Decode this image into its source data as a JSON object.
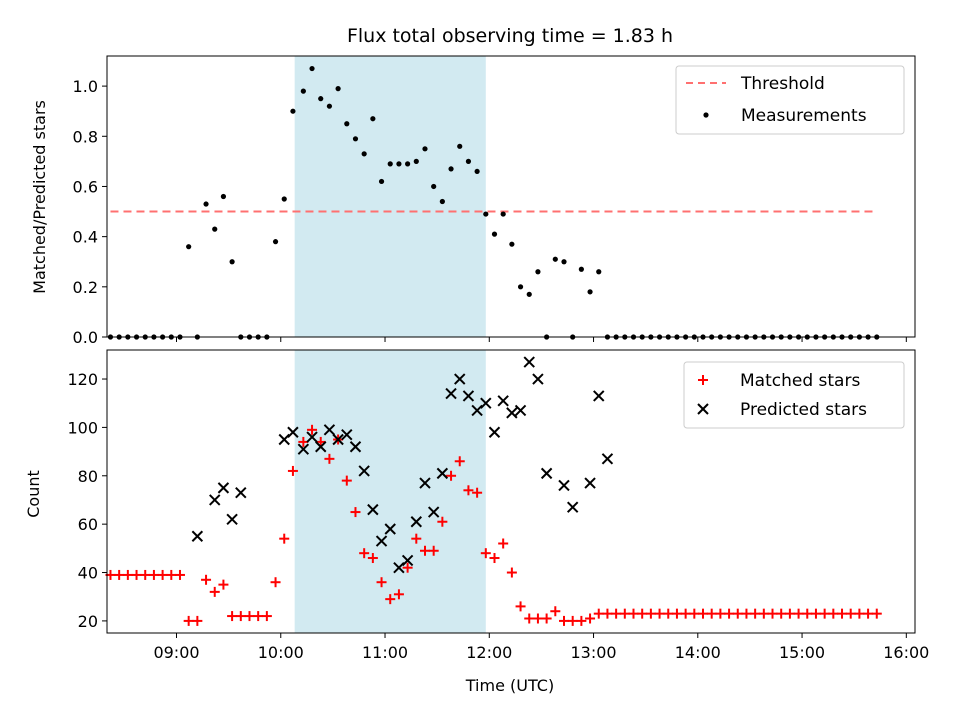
{
  "chart_data": [
    {
      "type": "scatter",
      "title": "Flux total observing time = 1.83 h",
      "xlabel": "",
      "ylabel": "Matched/Predicted stars",
      "xlim": [
        "08:20",
        "16:05"
      ],
      "ylim": [
        0,
        1.12
      ],
      "yticks": [
        0.0,
        0.2,
        0.4,
        0.6,
        0.8,
        1.0
      ],
      "ytick_labels": [
        "0.0",
        "0.2",
        "0.4",
        "0.6",
        "0.8",
        "1.0"
      ],
      "highlight_span": {
        "x": [
          "10:08",
          "11:58"
        ],
        "color": "#add8e6"
      },
      "grid": false,
      "legend": "top-right",
      "series": [
        {
          "name": "Threshold",
          "kind": "line",
          "style": "dashed",
          "color": "#ff7070",
          "x": [
            "08:22",
            "15:43"
          ],
          "y": [
            0.5,
            0.5
          ]
        },
        {
          "name": "Measurements",
          "kind": "scatter",
          "color": "#000000",
          "x": [
            "08:22",
            "08:27",
            "08:32",
            "08:37",
            "08:42",
            "08:47",
            "08:52",
            "08:57",
            "09:02",
            "09:07",
            "09:12",
            "09:17",
            "09:22",
            "09:27",
            "09:32",
            "09:37",
            "09:42",
            "09:47",
            "09:52",
            "09:57",
            "10:02",
            "10:07",
            "10:13",
            "10:18",
            "10:23",
            "10:28",
            "10:33",
            "10:38",
            "10:43",
            "10:48",
            "10:53",
            "10:58",
            "11:03",
            "11:08",
            "11:13",
            "11:18",
            "11:23",
            "11:28",
            "11:33",
            "11:38",
            "11:43",
            "11:48",
            "11:53",
            "11:58",
            "12:03",
            "12:08",
            "12:13",
            "12:18",
            "12:23",
            "12:28",
            "12:33",
            "12:38",
            "12:43",
            "12:48",
            "12:53",
            "12:58",
            "13:03",
            "13:08",
            "13:13",
            "13:18",
            "13:23",
            "13:28",
            "13:33",
            "13:38",
            "13:43",
            "13:48",
            "13:53",
            "13:58",
            "14:03",
            "14:08",
            "14:13",
            "14:18",
            "14:23",
            "14:28",
            "14:33",
            "14:38",
            "14:43",
            "14:48",
            "14:53",
            "14:58",
            "15:03",
            "15:08",
            "15:13",
            "15:18",
            "15:23",
            "15:28",
            "15:33",
            "15:38",
            "15:43"
          ],
          "y": [
            0,
            0,
            0,
            0,
            0,
            0,
            0,
            0,
            0,
            0.36,
            0,
            0.53,
            0.43,
            0.56,
            0.3,
            0,
            0,
            0,
            0,
            0.38,
            0.55,
            0.9,
            0.98,
            1.07,
            0.95,
            0.92,
            0.99,
            0.85,
            0.79,
            0.73,
            0.87,
            0.62,
            0.69,
            0.69,
            0.69,
            0.7,
            0.75,
            0.6,
            0.54,
            0.67,
            0.76,
            0.7,
            0.66,
            0.49,
            0.41,
            0.49,
            0.37,
            0.2,
            0.17,
            0.26,
            0,
            0.31,
            0.3,
            0,
            0.27,
            0.18,
            0.26,
            0,
            0,
            0,
            0,
            0,
            0,
            0,
            0,
            0,
            0,
            0,
            0,
            0,
            0,
            0,
            0,
            0,
            0,
            0,
            0,
            0,
            0,
            0,
            0,
            0,
            0,
            0,
            0,
            0,
            0,
            0,
            0
          ]
        }
      ]
    },
    {
      "type": "scatter",
      "title": "",
      "xlabel": "Time (UTC)",
      "ylabel": "Count",
      "xlim": [
        "08:20",
        "16:05"
      ],
      "ylim": [
        15,
        132
      ],
      "xticks": [
        "09:00",
        "10:00",
        "11:00",
        "12:00",
        "13:00",
        "14:00",
        "15:00",
        "16:00"
      ],
      "yticks": [
        20,
        40,
        60,
        80,
        100,
        120
      ],
      "ytick_labels": [
        "20",
        "40",
        "60",
        "80",
        "100",
        "120"
      ],
      "highlight_span": {
        "x": [
          "10:08",
          "11:58"
        ],
        "color": "#add8e6"
      },
      "grid": false,
      "legend": "top-right",
      "series": [
        {
          "name": "Matched stars",
          "kind": "scatter",
          "marker": "plus",
          "color": "#ff0000",
          "x": [
            "08:22",
            "08:27",
            "08:32",
            "08:37",
            "08:42",
            "08:47",
            "08:52",
            "08:57",
            "09:02",
            "09:07",
            "09:12",
            "09:17",
            "09:22",
            "09:27",
            "09:32",
            "09:37",
            "09:42",
            "09:47",
            "09:52",
            "09:57",
            "10:02",
            "10:07",
            "10:13",
            "10:18",
            "10:23",
            "10:28",
            "10:33",
            "10:38",
            "10:43",
            "10:48",
            "10:53",
            "10:58",
            "11:03",
            "11:08",
            "11:13",
            "11:18",
            "11:23",
            "11:28",
            "11:33",
            "11:38",
            "11:43",
            "11:48",
            "11:53",
            "11:58",
            "12:03",
            "12:08",
            "12:13",
            "12:18",
            "12:23",
            "12:28",
            "12:33",
            "12:38",
            "12:43",
            "12:48",
            "12:53",
            "12:58",
            "13:03",
            "13:08",
            "13:13",
            "13:18",
            "13:23",
            "13:28",
            "13:33",
            "13:38",
            "13:43",
            "13:48",
            "13:53",
            "13:58",
            "14:03",
            "14:08",
            "14:13",
            "14:18",
            "14:23",
            "14:28",
            "14:33",
            "14:38",
            "14:43",
            "14:48",
            "14:53",
            "14:58",
            "15:03",
            "15:08",
            "15:13",
            "15:18",
            "15:23",
            "15:28",
            "15:33",
            "15:38",
            "15:43"
          ],
          "y": [
            39,
            39,
            39,
            39,
            39,
            39,
            39,
            39,
            39,
            20,
            20,
            37,
            32,
            35,
            22,
            22,
            22,
            22,
            22,
            36,
            54,
            82,
            94,
            99,
            94,
            87,
            95,
            78,
            65,
            48,
            46,
            36,
            29,
            31,
            42,
            54,
            49,
            49,
            61,
            80,
            86,
            74,
            73,
            48,
            46,
            52,
            40,
            26,
            21,
            21,
            21,
            24,
            20,
            20,
            20,
            21,
            23,
            23,
            23,
            23,
            23,
            23,
            23,
            23,
            23,
            23,
            23,
            23,
            23,
            23,
            23,
            23,
            23,
            23,
            23,
            23,
            23,
            23,
            23,
            23,
            23,
            23,
            23,
            23,
            23,
            23,
            23,
            23,
            23
          ]
        },
        {
          "name": "Predicted stars",
          "kind": "scatter",
          "marker": "x",
          "color": "#000000",
          "x": [
            "09:12",
            "09:22",
            "09:27",
            "09:32",
            "09:37",
            "10:02",
            "10:07",
            "10:13",
            "10:18",
            "10:23",
            "10:28",
            "10:33",
            "10:38",
            "10:43",
            "10:48",
            "10:53",
            "10:58",
            "11:03",
            "11:08",
            "11:13",
            "11:18",
            "11:23",
            "11:28",
            "11:33",
            "11:38",
            "11:43",
            "11:48",
            "11:53",
            "11:58",
            "12:03",
            "12:08",
            "12:13",
            "12:18",
            "12:23",
            "12:28",
            "12:33",
            "12:43",
            "12:48",
            "12:58",
            "13:03",
            "13:08"
          ],
          "y": [
            55,
            70,
            75,
            62,
            73,
            95,
            98,
            91,
            96,
            92,
            99,
            95,
            97,
            92,
            82,
            66,
            53,
            58,
            42,
            45,
            61,
            77,
            65,
            81,
            114,
            120,
            113,
            107,
            110,
            98,
            111,
            106,
            107,
            127,
            120,
            81,
            76,
            67,
            77,
            113,
            87
          ]
        }
      ]
    }
  ]
}
